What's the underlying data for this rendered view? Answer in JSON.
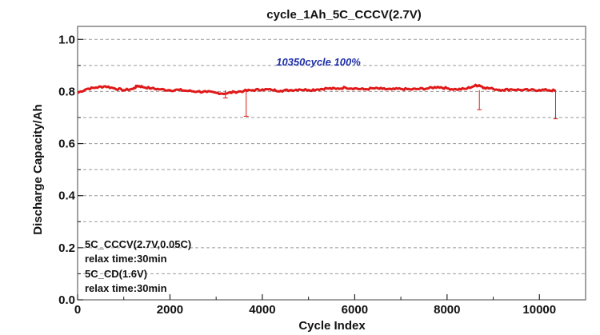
{
  "chart_data": {
    "type": "line",
    "title": "cycle_1Ah_5C_CCCV(2.7V)",
    "xlabel": "Cycle Index",
    "ylabel": "Discharge Capacity/Ah",
    "xlim": [
      0,
      11000
    ],
    "ylim": [
      0.0,
      1.05
    ],
    "xticks": [
      "0",
      "2000",
      "4000",
      "6000",
      "8000",
      "10000"
    ],
    "xtick_values": [
      0,
      2000,
      4000,
      6000,
      8000,
      10000
    ],
    "yticks": [
      "0.0",
      "0.2",
      "0.4",
      "0.6",
      "0.8",
      "1.0"
    ],
    "ytick_values": [
      0.0,
      0.2,
      0.4,
      0.6,
      0.8,
      1.0
    ],
    "grid": "dashed-horizontal",
    "annotation": "10350cycle  100%",
    "conditions": [
      "5C_CCCV(2.7V,0.05C)",
      "relax time:30min",
      "5C_CD(1.6V)",
      "relax time:30min"
    ],
    "series": [
      {
        "color": "#e01818",
        "x": [
          0,
          200,
          400,
          600,
          800,
          1000,
          1200,
          1300,
          1400,
          1600,
          1800,
          2000,
          2200,
          2400,
          2600,
          2800,
          3000,
          3200,
          3400,
          3600,
          3800,
          4000,
          4200,
          4400,
          4600,
          4800,
          5000,
          5200,
          5400,
          5600,
          5800,
          6000,
          6200,
          6400,
          6600,
          6800,
          7000,
          7200,
          7400,
          7600,
          7800,
          8000,
          8200,
          8400,
          8600,
          8700,
          8800,
          9000,
          9200,
          9400,
          9600,
          9800,
          10000,
          10200,
          10350
        ],
        "values": [
          0.795,
          0.81,
          0.815,
          0.82,
          0.812,
          0.805,
          0.81,
          0.822,
          0.818,
          0.812,
          0.808,
          0.805,
          0.806,
          0.802,
          0.8,
          0.798,
          0.795,
          0.792,
          0.798,
          0.802,
          0.805,
          0.808,
          0.806,
          0.803,
          0.805,
          0.808,
          0.806,
          0.808,
          0.812,
          0.81,
          0.815,
          0.812,
          0.808,
          0.812,
          0.81,
          0.808,
          0.81,
          0.808,
          0.81,
          0.812,
          0.818,
          0.812,
          0.808,
          0.81,
          0.822,
          0.824,
          0.815,
          0.81,
          0.806,
          0.808,
          0.806,
          0.805,
          0.806,
          0.805,
          0.803
        ]
      }
    ],
    "dips": [
      {
        "x": 3200,
        "y": 0.775
      },
      {
        "x": 3650,
        "y": 0.705
      },
      {
        "x": 8700,
        "y": 0.73
      },
      {
        "x": 10350,
        "y": 0.695
      }
    ]
  }
}
